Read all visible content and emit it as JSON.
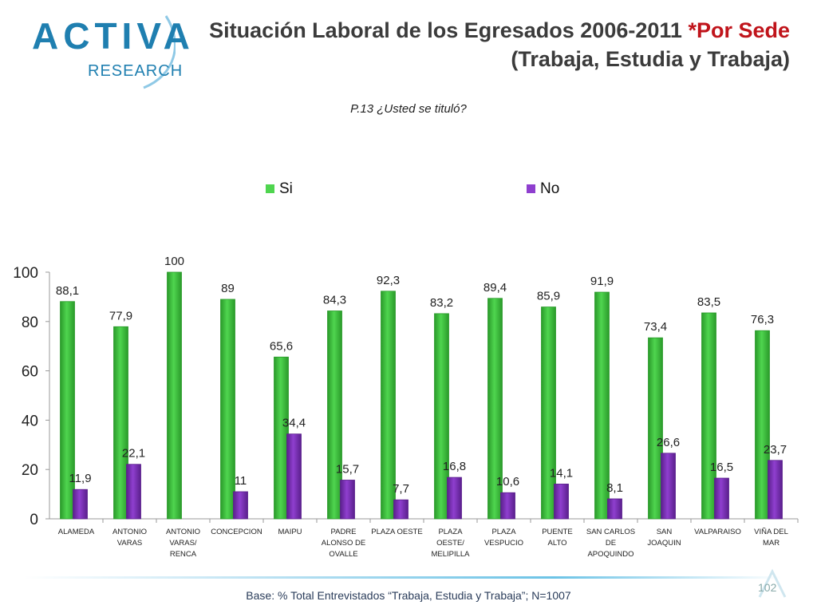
{
  "logo": {
    "word": "ACTIVA",
    "sub": "RESEARCH"
  },
  "header": {
    "title_main": "Situación Laboral de los Egresados 2006-2011",
    "title_accent": "*Por Sede",
    "title_line2": "(Trabaja, Estudia y Trabaja)"
  },
  "question": "P.13 ¿Usted se tituló?",
  "footer": {
    "base": "Base: % Total Entrevistados “Trabaja, Estudia y Trabaja”; N=1007",
    "page": "102"
  },
  "colors": {
    "si": "#4fd54f",
    "si_dark": "#2a9a2a",
    "no": "#8f3fcf",
    "no_dark": "#5a1f8c",
    "accent": "#c0141b"
  },
  "chart_data": {
    "type": "bar",
    "title": "P.13 ¿Usted se tituló?",
    "xlabel": "",
    "ylabel": "",
    "ylim": [
      0,
      100
    ],
    "yticks": [
      "0",
      "20",
      "40",
      "60",
      "80",
      "100"
    ],
    "grid": false,
    "legend_position": "top",
    "categories": [
      [
        "ALAMEDA"
      ],
      [
        "ANTONIO",
        "VARAS"
      ],
      [
        "ANTONIO",
        "VARAS/",
        "RENCA"
      ],
      [
        "CONCEPCION"
      ],
      [
        "MAIPU"
      ],
      [
        "PADRE",
        "ALONSO DE",
        "OVALLE"
      ],
      [
        "PLAZA OESTE"
      ],
      [
        "PLAZA",
        "OESTE/",
        "MELIPILLA"
      ],
      [
        "PLAZA",
        "VESPUCIO"
      ],
      [
        "PUENTE",
        "ALTO"
      ],
      [
        "SAN CARLOS",
        "DE",
        "APOQUINDO"
      ],
      [
        "SAN",
        "JOAQUIN"
      ],
      [
        "VALPARAISO"
      ],
      [
        "VIÑA DEL",
        "MAR"
      ]
    ],
    "series": [
      {
        "name": "Si",
        "values": [
          88.1,
          77.9,
          100,
          89,
          65.6,
          84.3,
          92.3,
          83.2,
          89.4,
          85.9,
          91.9,
          73.4,
          83.5,
          76.3
        ],
        "labels": [
          "88,1",
          "77,9",
          "100",
          "89",
          "65,6",
          "84,3",
          "92,3",
          "83,2",
          "89,4",
          "85,9",
          "91,9",
          "73,4",
          "83,5",
          "76,3"
        ]
      },
      {
        "name": "No",
        "values": [
          11.9,
          22.1,
          null,
          11,
          34.4,
          15.7,
          7.7,
          16.8,
          10.6,
          14.1,
          8.1,
          26.6,
          16.5,
          23.7
        ],
        "labels": [
          "11,9",
          "22,1",
          "",
          "11",
          "34,4",
          "15,7",
          "7,7",
          "16,8",
          "10,6",
          "14,1",
          "8,1",
          "26,6",
          "16,5",
          "23,7"
        ]
      }
    ]
  }
}
